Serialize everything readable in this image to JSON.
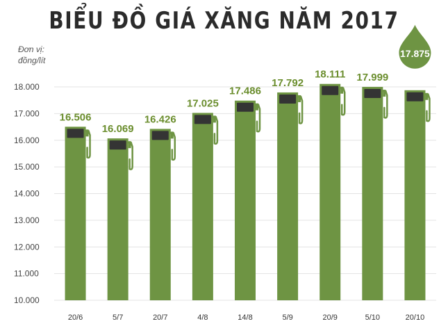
{
  "title": "BIỂU ĐỒ GIÁ XĂNG NĂM 2017",
  "unit_label_line1": "Đơn vị:",
  "unit_label_line2": "đồng/lít",
  "colors": {
    "bar": "#6e9443",
    "bar_dark": "#343434",
    "value_text": "#6b8e2e",
    "drop": "#6e9443",
    "grid": "#e3e3e3"
  },
  "chart_data": {
    "type": "bar",
    "title": "BIỂU ĐỒ GIÁ XĂNG NĂM 2017",
    "ylabel": "Đơn vị: đồng/lít",
    "xlabel": "",
    "categories": [
      "20/6",
      "5/7",
      "20/7",
      "4/8",
      "14/8",
      "5/9",
      "20/9",
      "5/10",
      "20/10"
    ],
    "values": [
      16506,
      16069,
      16426,
      17025,
      17486,
      17792,
      18111,
      17999,
      17875
    ],
    "value_labels": [
      "16.506",
      "16.069",
      "16.426",
      "17.025",
      "17.486",
      "17.792",
      "18.111",
      "17.999",
      "17.875"
    ],
    "ylim": [
      10000,
      18000
    ],
    "yticks": [
      10000,
      11000,
      12000,
      13000,
      14000,
      15000,
      16000,
      17000,
      18000
    ],
    "ytick_labels": [
      "10.000",
      "11.000",
      "12.000",
      "13.000",
      "14.000",
      "15.000",
      "16.000",
      "17.000",
      "18.000"
    ],
    "grid": true,
    "highlight_index": 8
  }
}
